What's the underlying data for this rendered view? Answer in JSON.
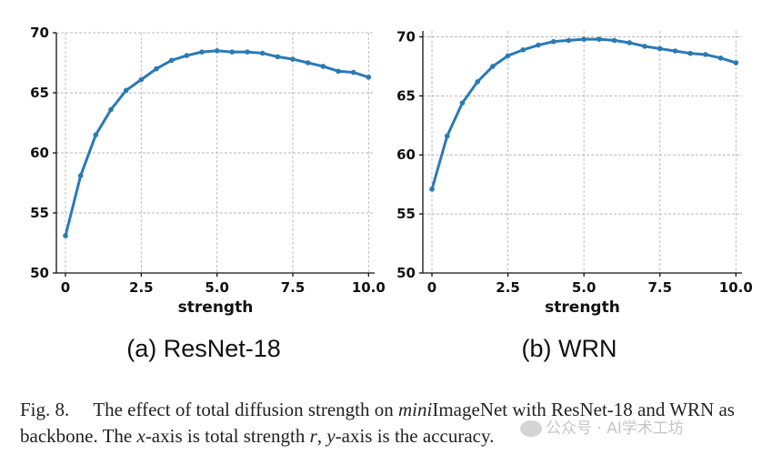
{
  "chart_data": [
    {
      "type": "line",
      "subcaption": "(a) ResNet-18",
      "xlabel": "strength",
      "ylabel": "",
      "xlim": [
        -0.3,
        10.2
      ],
      "ylim": [
        50,
        70
      ],
      "xticks": [
        "0",
        "2.5",
        "5.0",
        "7.5",
        "10.0"
      ],
      "xtick_values": [
        0,
        2.5,
        5.0,
        7.5,
        10.0
      ],
      "yticks": [
        "50",
        "55",
        "60",
        "65",
        "70"
      ],
      "ytick_values": [
        50,
        55,
        60,
        65,
        70
      ],
      "grid": true,
      "x": [
        0,
        0.5,
        1,
        1.5,
        2,
        2.5,
        3,
        3.5,
        4,
        4.5,
        5,
        5.5,
        6,
        6.5,
        7,
        7.5,
        8,
        8.5,
        9,
        9.5,
        10
      ],
      "y": [
        53.1,
        58.1,
        61.5,
        63.6,
        65.2,
        66.1,
        67.0,
        67.7,
        68.1,
        68.4,
        68.5,
        68.4,
        68.4,
        68.3,
        68.0,
        67.8,
        67.5,
        67.2,
        66.8,
        66.7,
        66.3
      ]
    },
    {
      "type": "line",
      "subcaption": "(b) WRN",
      "xlabel": "strength",
      "ylabel": "",
      "xlim": [
        -0.3,
        10.2
      ],
      "ylim": [
        50,
        70.5
      ],
      "xticks": [
        "0",
        "2.5",
        "5.0",
        "7.5",
        "10.0"
      ],
      "xtick_values": [
        0,
        2.5,
        5.0,
        7.5,
        10.0
      ],
      "yticks": [
        "50",
        "55",
        "60",
        "65",
        "70"
      ],
      "ytick_values": [
        50,
        55,
        60,
        65,
        70
      ],
      "grid": true,
      "x": [
        0,
        0.5,
        1,
        1.5,
        2,
        2.5,
        3,
        3.5,
        4,
        4.5,
        5,
        5.5,
        6,
        6.5,
        7,
        7.5,
        8,
        8.5,
        9,
        9.5,
        10
      ],
      "y": [
        57.1,
        61.6,
        64.4,
        66.2,
        67.5,
        68.4,
        68.9,
        69.3,
        69.6,
        69.7,
        69.8,
        69.8,
        69.7,
        69.5,
        69.2,
        69.0,
        68.8,
        68.6,
        68.5,
        68.2,
        67.8
      ]
    }
  ],
  "caption": {
    "label": "Fig. 8.",
    "parts": [
      {
        "text": "The effect of total diffusion strength on ",
        "italic": false
      },
      {
        "text": "mini",
        "italic": true
      },
      {
        "text": "ImageNet with ResNet-18 and WRN as backbone. The ",
        "italic": false
      },
      {
        "text": "x",
        "italic": true
      },
      {
        "text": "-axis is total strength ",
        "italic": false
      },
      {
        "text": "r",
        "italic": true
      },
      {
        "text": ", ",
        "italic": false
      },
      {
        "text": "y",
        "italic": true
      },
      {
        "text": "-axis is the accuracy.",
        "italic": false
      }
    ]
  },
  "watermark": "公众号 · AI学术工坊"
}
